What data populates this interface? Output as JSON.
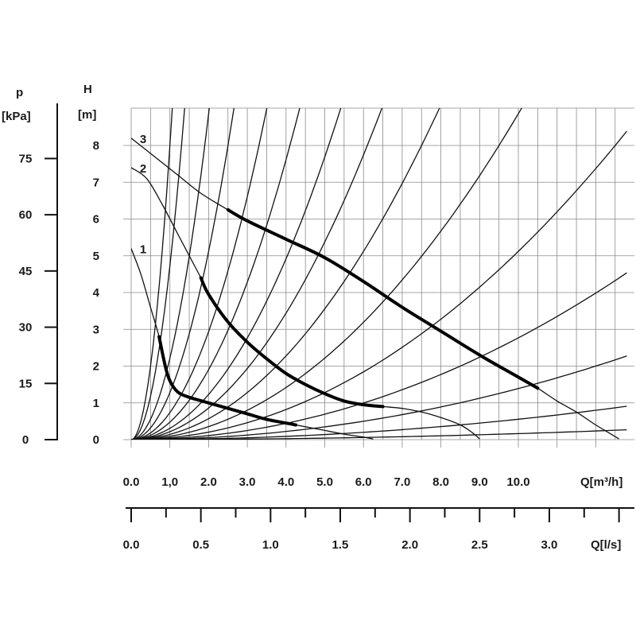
{
  "chart_data": {
    "type": "line",
    "primary_axes": {
      "ylabel": "H",
      "yunit": "[m]",
      "xunit": "Q[m³/h]",
      "y_ticks": [
        "0",
        "1",
        "2",
        "3",
        "4",
        "5",
        "6",
        "7",
        "8"
      ],
      "x_ticks": [
        "0.0",
        "1,0",
        "2.0",
        "3.0",
        "4.0",
        "5.0",
        "6.0",
        "7.0",
        "8.0",
        "9.0",
        "10.0"
      ],
      "xlim": [
        0,
        12.8
      ],
      "ylim": [
        0,
        8.8
      ],
      "grid": true
    },
    "pressure_axis": {
      "label": "p",
      "unit": "[kPa]",
      "ticks": [
        "0",
        "15",
        "30",
        "45",
        "60",
        "75"
      ],
      "tick_values": [
        0,
        15,
        30,
        45,
        60,
        75
      ]
    },
    "flow_axis_ls": {
      "unit": "Q[l/s]",
      "ticks": [
        "0.0",
        "0.5",
        "1.0",
        "1.5",
        "2.0",
        "2.5",
        "3.0"
      ],
      "tick_values": [
        0,
        0.5,
        1.0,
        1.5,
        2.0,
        2.5,
        3.0
      ]
    },
    "pump_curves": [
      {
        "name": "1",
        "points": [
          [
            0,
            5.2
          ],
          [
            0.25,
            4.5
          ],
          [
            0.5,
            3.6
          ],
          [
            0.72,
            2.8
          ],
          [
            0.88,
            2.0
          ],
          [
            1.0,
            1.6
          ],
          [
            1.2,
            1.3
          ],
          [
            1.5,
            1.15
          ],
          [
            2.0,
            1.0
          ],
          [
            2.5,
            0.85
          ],
          [
            3.0,
            0.7
          ],
          [
            3.5,
            0.55
          ],
          [
            4.0,
            0.45
          ],
          [
            4.5,
            0.35
          ],
          [
            5.0,
            0.25
          ],
          [
            5.5,
            0.15
          ],
          [
            6.0,
            0.07
          ],
          [
            6.25,
            0.02
          ]
        ],
        "bold_range": [
          0.72,
          4.25
        ]
      },
      {
        "name": "2",
        "points": [
          [
            0,
            7.4
          ],
          [
            0.4,
            7.1
          ],
          [
            0.8,
            6.4
          ],
          [
            1.2,
            5.6
          ],
          [
            1.5,
            5.0
          ],
          [
            1.8,
            4.4
          ],
          [
            2.0,
            3.95
          ],
          [
            2.5,
            3.2
          ],
          [
            3.0,
            2.65
          ],
          [
            3.5,
            2.2
          ],
          [
            4.0,
            1.8
          ],
          [
            4.5,
            1.5
          ],
          [
            5.0,
            1.25
          ],
          [
            5.5,
            1.05
          ],
          [
            6.0,
            0.95
          ],
          [
            6.5,
            0.9
          ],
          [
            7.0,
            0.85
          ],
          [
            7.5,
            0.75
          ],
          [
            8.0,
            0.6
          ],
          [
            8.5,
            0.4
          ],
          [
            8.8,
            0.2
          ],
          [
            9.0,
            0.02
          ]
        ],
        "bold_range": [
          1.8,
          6.5
        ]
      },
      {
        "name": "3",
        "points": [
          [
            0,
            8.2
          ],
          [
            0.6,
            7.7
          ],
          [
            1.2,
            7.2
          ],
          [
            1.8,
            6.7
          ],
          [
            2.5,
            6.25
          ],
          [
            3.0,
            5.95
          ],
          [
            4.0,
            5.45
          ],
          [
            5.0,
            4.95
          ],
          [
            6.0,
            4.3
          ],
          [
            7.0,
            3.6
          ],
          [
            8.0,
            2.95
          ],
          [
            9.0,
            2.3
          ],
          [
            10.0,
            1.7
          ],
          [
            10.5,
            1.4
          ],
          [
            11.0,
            1.05
          ],
          [
            11.5,
            0.75
          ],
          [
            12.0,
            0.4
          ],
          [
            12.6,
            0.02
          ]
        ],
        "bold_range": [
          2.5,
          10.5
        ]
      }
    ],
    "system_curves_m3h_at_8m": [
      1.0,
      1.3,
      1.9,
      2.5,
      3.3,
      4.1,
      5.1,
      6.1,
      7.5,
      9.5,
      12.5,
      17.0,
      24.0,
      38.0,
      70.0
    ],
    "annotations": [
      "1",
      "2",
      "3"
    ]
  }
}
